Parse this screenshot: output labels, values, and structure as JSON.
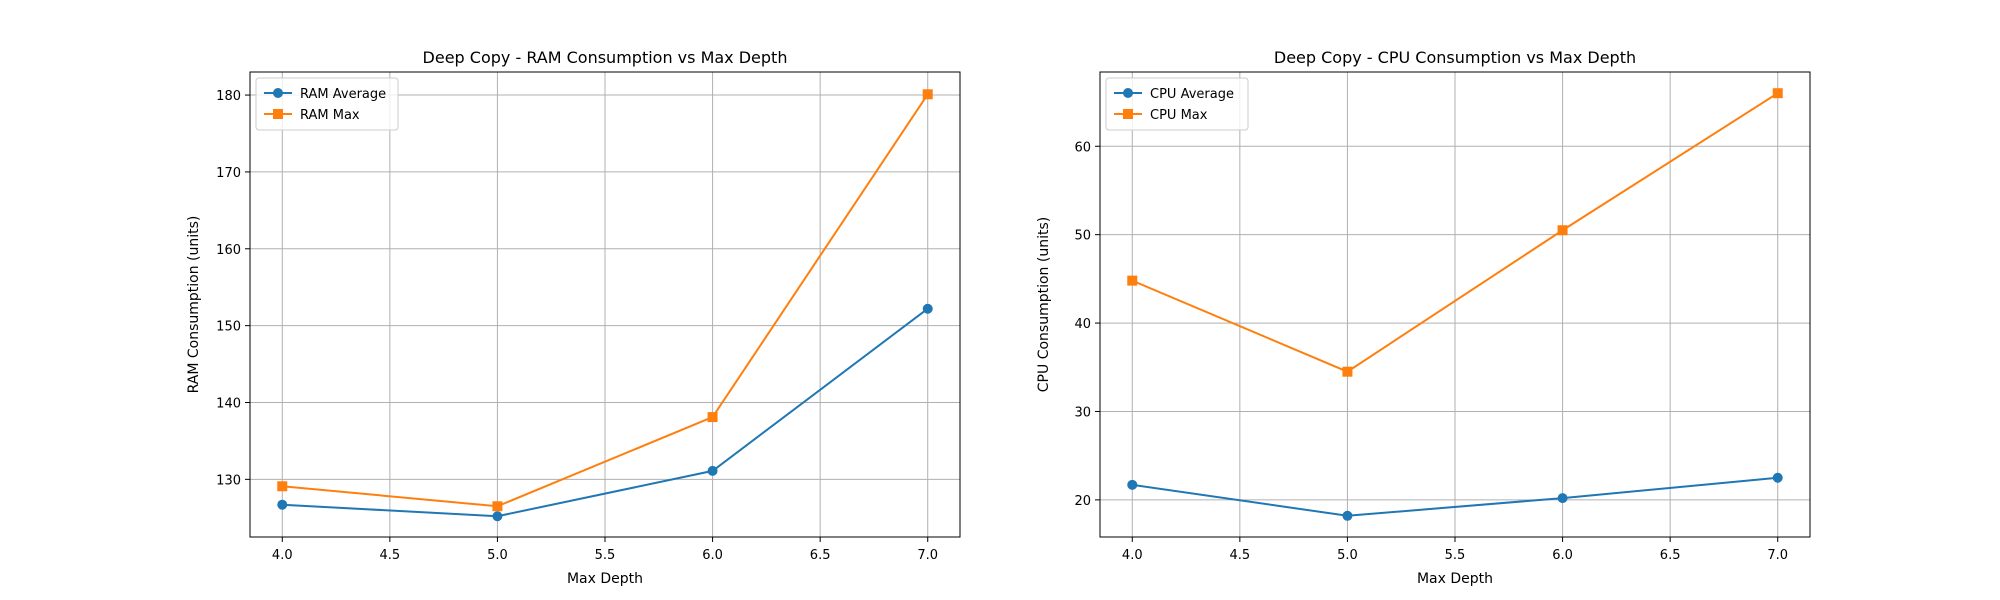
{
  "figure": {
    "background": "#ffffff"
  },
  "chart_data": [
    {
      "type": "line",
      "title": "Deep Copy - RAM Consumption vs Max Depth",
      "xlabel": "Max Depth",
      "ylabel": "RAM Consumption (units)",
      "x": [
        4.0,
        5.0,
        6.0,
        7.0
      ],
      "xlim": [
        3.85,
        7.15
      ],
      "ylim": [
        122.5,
        183
      ],
      "xticks": [
        4.0,
        4.5,
        5.0,
        5.5,
        6.0,
        6.5,
        7.0
      ],
      "xtick_labels": [
        "4.0",
        "4.5",
        "5.0",
        "5.5",
        "6.0",
        "6.5",
        "7.0"
      ],
      "yticks": [
        130,
        140,
        150,
        160,
        170,
        180
      ],
      "ytick_labels": [
        "130",
        "140",
        "150",
        "160",
        "170",
        "180"
      ],
      "grid": true,
      "legend_position": "top-left",
      "series": [
        {
          "name": "RAM Average",
          "values": [
            126.7,
            125.2,
            131.1,
            152.2
          ],
          "color": "#1f77b4",
          "marker": "circle"
        },
        {
          "name": "RAM Max",
          "values": [
            129.1,
            126.5,
            138.1,
            180.1
          ],
          "color": "#ff7f0e",
          "marker": "square"
        }
      ]
    },
    {
      "type": "line",
      "title": "Deep Copy - CPU Consumption vs Max Depth",
      "xlabel": "Max Depth",
      "ylabel": "CPU Consumption (units)",
      "x": [
        4.0,
        5.0,
        6.0,
        7.0
      ],
      "xlim": [
        3.85,
        7.15
      ],
      "ylim": [
        15.8,
        68.4
      ],
      "xticks": [
        4.0,
        4.5,
        5.0,
        5.5,
        6.0,
        6.5,
        7.0
      ],
      "xtick_labels": [
        "4.0",
        "4.5",
        "5.0",
        "5.5",
        "6.0",
        "6.5",
        "7.0"
      ],
      "yticks": [
        20,
        30,
        40,
        50,
        60
      ],
      "ytick_labels": [
        "20",
        "30",
        "40",
        "50",
        "60"
      ],
      "grid": true,
      "legend_position": "top-left",
      "series": [
        {
          "name": "CPU Average",
          "values": [
            21.7,
            18.2,
            20.2,
            22.5
          ],
          "color": "#1f77b4",
          "marker": "circle"
        },
        {
          "name": "CPU Max",
          "values": [
            44.8,
            34.5,
            50.5,
            66.0
          ],
          "color": "#ff7f0e",
          "marker": "square"
        }
      ]
    }
  ]
}
